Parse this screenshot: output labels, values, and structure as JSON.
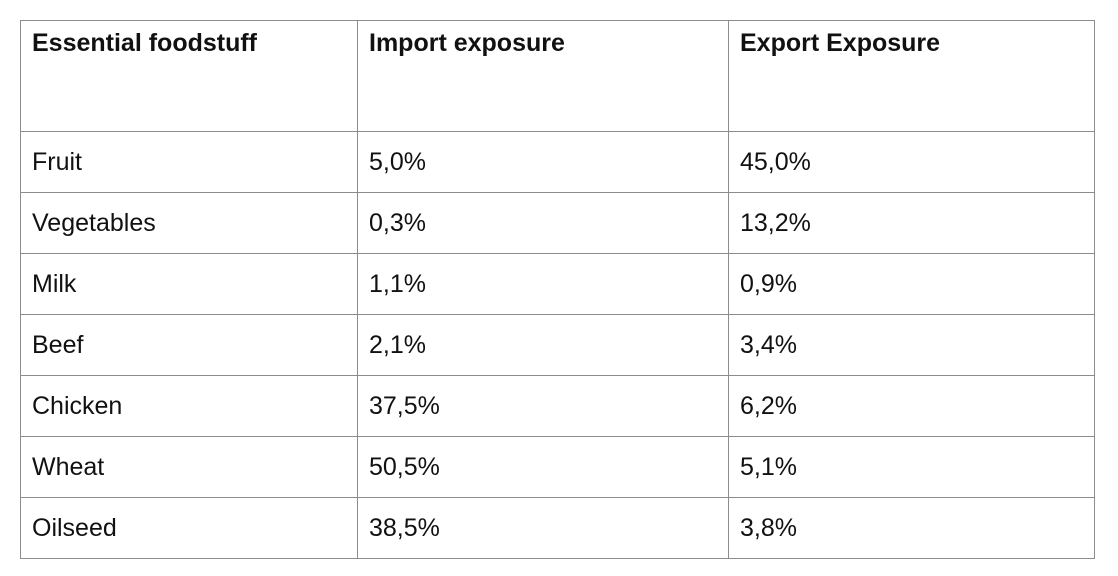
{
  "table": {
    "headers": [
      "Essential foodstuff",
      "Import exposure",
      "Export Exposure"
    ],
    "rows": [
      [
        "Fruit",
        "5,0%",
        "45,0%"
      ],
      [
        "Vegetables",
        "0,3%",
        "13,2%"
      ],
      [
        "Milk",
        "1,1%",
        "0,9%"
      ],
      [
        "Beef",
        "2,1%",
        "3,4%"
      ],
      [
        "Chicken",
        "37,5%",
        "6,2%"
      ],
      [
        "Wheat",
        "50,5%",
        "5,1%"
      ],
      [
        "Oilseed",
        "38,5%",
        "3,8%"
      ]
    ]
  }
}
